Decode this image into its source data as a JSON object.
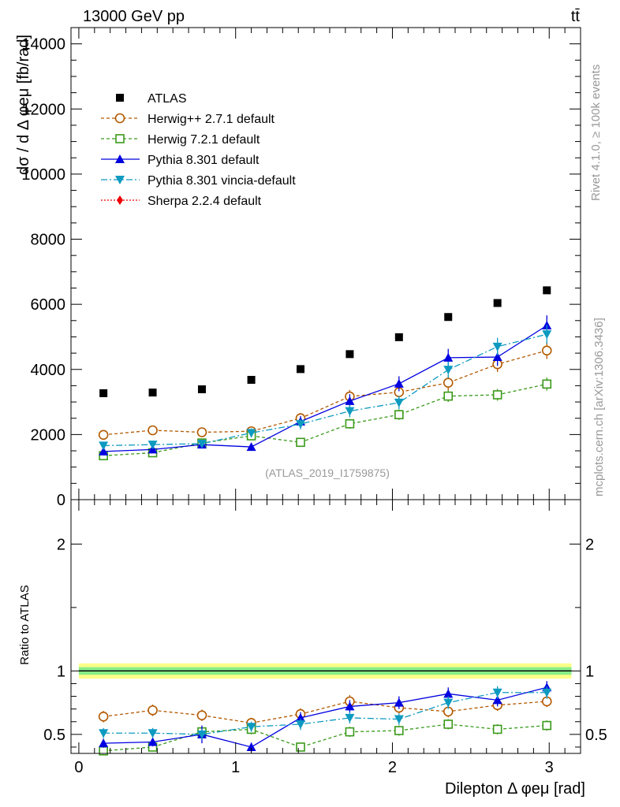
{
  "header": {
    "energy_label": "13000 GeV pp",
    "process_label": "tt̄"
  },
  "side_labels": {
    "rivet": "Rivet 4.1.0, ≥ 100k events",
    "mcplots": "mcplots.cern.ch [arXiv:1306.3436]"
  },
  "watermark": "(ATLAS_2019_I1759875)",
  "colors": {
    "ATLAS": "#000000",
    "Herwig++ 2.7.1 default": "#b35900",
    "Herwig 7.2.1 default": "#3a9a1a",
    "Pythia 8.301 default": "#0000e0",
    "Pythia 8.301 vincia-default": "#0e9ac0",
    "Sherpa 2.2.4 default": "#ee0000",
    "band_outer": "#ffff88",
    "band_inner": "#88ee88"
  },
  "chart_data": [
    {
      "type": "scatter",
      "panel": "main",
      "ylabel": "dσ / d Δ φeμ [fb/rad]",
      "xlim": [
        -0.05,
        3.2
      ],
      "ylim": [
        0,
        14500
      ],
      "ytick_labels": [
        "0",
        "2000",
        "4000",
        "6000",
        "8000",
        "10000",
        "12000",
        "14000"
      ],
      "ytick_values": [
        0,
        2000,
        4000,
        6000,
        8000,
        10000,
        12000,
        14000
      ],
      "x": [
        0.157,
        0.471,
        0.785,
        1.1,
        1.414,
        1.728,
        2.042,
        2.356,
        2.67,
        2.985
      ],
      "series": [
        {
          "name": "ATLAS",
          "marker": "square",
          "values": [
            3270,
            3290,
            3390,
            3680,
            4010,
            4470,
            4990,
            5610,
            6040,
            6430
          ],
          "errors": [
            60,
            60,
            60,
            70,
            70,
            80,
            90,
            100,
            100,
            110
          ]
        },
        {
          "name": "Herwig++ 2.7.1 default",
          "marker": "open-circle",
          "values": [
            1990,
            2130,
            2070,
            2100,
            2500,
            3170,
            3300,
            3590,
            4160,
            4580
          ],
          "errors": [
            140,
            140,
            140,
            140,
            160,
            200,
            200,
            230,
            240,
            260
          ]
        },
        {
          "name": "Herwig 7.2.1 default",
          "marker": "open-square",
          "values": [
            1350,
            1440,
            1740,
            1960,
            1760,
            2330,
            2610,
            3180,
            3220,
            3550
          ],
          "errors": [
            100,
            100,
            120,
            130,
            120,
            150,
            160,
            180,
            180,
            200
          ]
        },
        {
          "name": "Pythia 8.301 default",
          "marker": "triangle-up",
          "values": [
            1480,
            1540,
            1690,
            1620,
            2400,
            3030,
            3560,
            4360,
            4380,
            5350
          ],
          "errors": [
            110,
            110,
            120,
            120,
            170,
            210,
            230,
            270,
            270,
            310
          ]
        },
        {
          "name": "Pythia 8.301 vincia-default",
          "marker": "triangle-down",
          "values": [
            1660,
            1690,
            1720,
            2050,
            2320,
            2720,
            2980,
            3990,
            4700,
            5080
          ],
          "errors": [
            120,
            120,
            120,
            140,
            160,
            190,
            200,
            250,
            270,
            290
          ]
        },
        {
          "name": "Sherpa 2.2.4 default",
          "marker": "diamond",
          "values": [],
          "errors": []
        }
      ]
    },
    {
      "type": "scatter",
      "panel": "ratio",
      "ylabel": "Ratio to ATLAS",
      "xlabel": "Dilepton Δ φeμ [rad]",
      "xlim": [
        -0.05,
        3.2
      ],
      "ylim": [
        0.35,
        2.35
      ],
      "ytick_labels": [
        "0.5",
        "1",
        "2"
      ],
      "ytick_values": [
        0.5,
        1,
        2
      ],
      "xtick_labels": [
        "0",
        "1",
        "2",
        "3"
      ],
      "xtick_values": [
        0,
        1,
        2,
        3
      ],
      "reference_band": {
        "outer": 0.06,
        "inner": 0.03
      },
      "x": [
        0.157,
        0.471,
        0.785,
        1.1,
        1.414,
        1.728,
        2.042,
        2.356,
        2.67,
        2.985
      ],
      "series": [
        {
          "name": "Herwig++ 2.7.1 default",
          "values": [
            0.64,
            0.69,
            0.65,
            0.59,
            0.66,
            0.76,
            0.71,
            0.68,
            0.73,
            0.76
          ],
          "errors": [
            0.045,
            0.045,
            0.045,
            0.04,
            0.045,
            0.05,
            0.045,
            0.045,
            0.045,
            0.045
          ]
        },
        {
          "name": "Herwig 7.2.1 default",
          "values": [
            0.37,
            0.4,
            0.52,
            0.54,
            0.4,
            0.52,
            0.53,
            0.58,
            0.54,
            0.57
          ],
          "errors": [
            0.035,
            0.035,
            0.04,
            0.04,
            0.035,
            0.04,
            0.04,
            0.04,
            0.04,
            0.04
          ]
        },
        {
          "name": "Pythia 8.301 default",
          "values": [
            0.43,
            0.44,
            0.5,
            0.4,
            0.63,
            0.72,
            0.75,
            0.82,
            0.77,
            0.87
          ],
          "errors": [
            0.035,
            0.035,
            0.07,
            0.035,
            0.045,
            0.05,
            0.05,
            0.05,
            0.05,
            0.05
          ]
        },
        {
          "name": "Pythia 8.301 vincia-default",
          "values": [
            0.51,
            0.51,
            0.5,
            0.56,
            0.58,
            0.63,
            0.62,
            0.75,
            0.83,
            0.83
          ],
          "errors": [
            0.04,
            0.04,
            0.04,
            0.04,
            0.045,
            0.045,
            0.045,
            0.05,
            0.05,
            0.05
          ]
        }
      ]
    }
  ]
}
